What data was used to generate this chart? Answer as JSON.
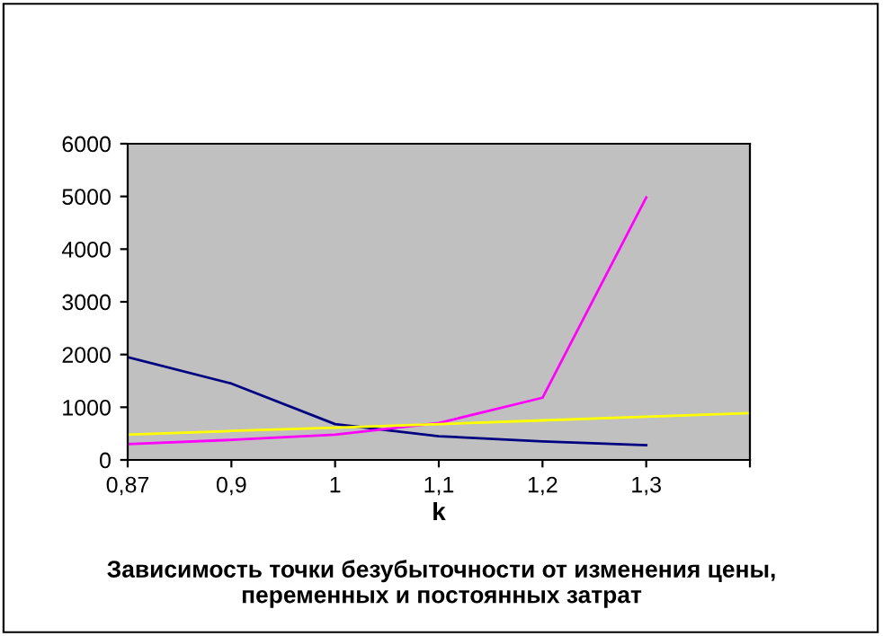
{
  "chart_data": {
    "type": "line",
    "xlabel": "k",
    "title": "Зависимость точки безубыточности от изменения цены,\nпеременных и постоянных затрат",
    "categories": [
      "0,87",
      "0,9",
      "1",
      "1,1",
      "1,2",
      "1,3",
      null
    ],
    "series": [
      {
        "color": "#000080",
        "values": [
          1950,
          1450,
          680,
          450,
          350,
          280,
          null
        ]
      },
      {
        "color": "#ff00ff",
        "values": [
          300,
          380,
          480,
          700,
          1180,
          4980,
          null
        ]
      },
      {
        "color": "#ffff00",
        "values": [
          480,
          550,
          610,
          680,
          750,
          820,
          890
        ]
      }
    ],
    "ylim": [
      0,
      6000
    ],
    "yticks": [
      0,
      1000,
      2000,
      3000,
      4000,
      5000,
      6000
    ],
    "grid": false,
    "legend": false
  }
}
